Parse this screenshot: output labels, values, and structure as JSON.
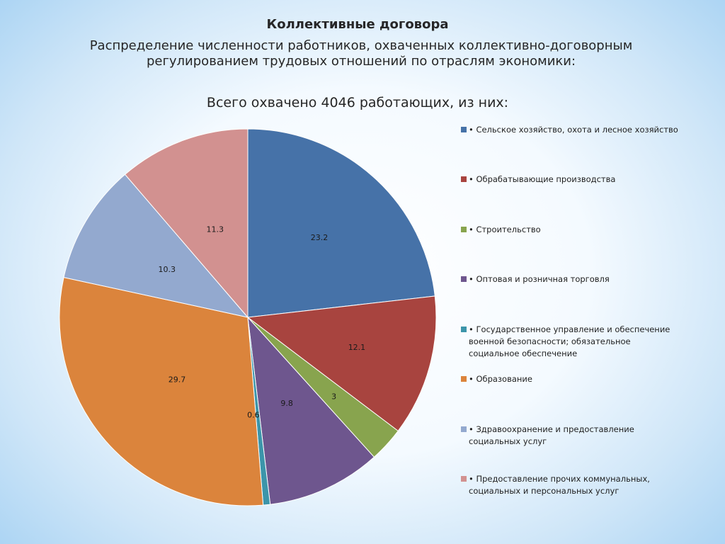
{
  "slide": {
    "title": "Коллективные договора",
    "subtitle": "Распределение численности работников, охваченных коллективно-договорным\nрегулированием трудовых отношений по отраслям экономики:"
  },
  "chart_data": {
    "type": "pie",
    "title": "Всего охвачено 4046 работающих, из них:",
    "legend_position": "right",
    "categories": [
      "• Сельское хозяйство, охота и лесное хозяйство",
      "• Обрабатывающие производства",
      "• Строительство",
      "• Оптовая и розничная торговля",
      "• Государственное управление и обеспечение военной безопасности; обязательное социальное обеспечение",
      "• Образование",
      "• Здравоохранение и предоставление социальных услуг",
      "• Предоставление прочих коммунальных, социальных и персональных услуг"
    ],
    "legend_lines": [
      "• Сельское хозяйство, охота и лесное хозяйство",
      "• Обрабатывающие производства",
      "• Строительство",
      "• Оптовая и розничная торговля",
      "• Государственное управление и обеспечение\nвоенной безопасности; обязательное\nсоциальное обеспечение",
      "• Образование",
      "• Здравоохранение и предоставление\nсоциальных услуг",
      "• Предоставление прочих коммунальных,\nсоциальных и персональных услуг"
    ],
    "values": [
      23.2,
      12.1,
      3,
      9.8,
      0.6,
      29.7,
      10.3,
      11.3
    ],
    "data_labels": [
      "23.2",
      "12.1",
      "3",
      "9.8",
      "0.6",
      "29.7",
      "10.3",
      "11.3"
    ],
    "colors": [
      "#4672a8",
      "#a8443f",
      "#88a44e",
      "#6e568e",
      "#3c95aa",
      "#db843c",
      "#93a9cf",
      "#d29190"
    ]
  }
}
